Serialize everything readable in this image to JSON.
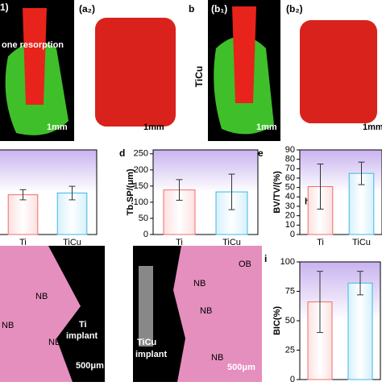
{
  "chart_data": [
    {
      "type": "bar",
      "categories": [
        "Ti",
        "TiCu"
      ],
      "values": [
        0.47,
        0.49
      ],
      "errors": [
        0.06,
        0.08
      ],
      "ylim": [
        0,
        1
      ],
      "colors": [
        "#f26b6b",
        "#3bb8e8"
      ]
    },
    {
      "type": "bar",
      "ylabel": "Tb.SP/(μm)",
      "categories": [
        "Ti",
        "TiCu"
      ],
      "values": [
        138,
        132
      ],
      "errors": [
        32,
        55
      ],
      "ylim": [
        0,
        262
      ],
      "yticks": [
        0,
        50,
        100,
        150,
        200,
        250
      ],
      "colors": [
        "#f26b6b",
        "#3bb8e8"
      ]
    },
    {
      "type": "bar",
      "ylabel": "BV/TV/(%)",
      "annotation": "h",
      "categories": [
        "Ti",
        "TiCu"
      ],
      "values": [
        51,
        65
      ],
      "errors": [
        24,
        12
      ],
      "ylim": [
        0,
        90
      ],
      "yticks": [
        0,
        10,
        20,
        30,
        40,
        50,
        60,
        70,
        80,
        90
      ],
      "colors": [
        "#f26b6b",
        "#3bb8e8"
      ]
    },
    {
      "type": "bar",
      "ylabel": "BIC(%)",
      "categories": [
        "Ti",
        "TiCu"
      ],
      "values": [
        66,
        82
      ],
      "errors": [
        26,
        10
      ],
      "ylim": [
        0,
        100
      ],
      "yticks": [
        0,
        25,
        50,
        75,
        100
      ],
      "colors": [
        "#f26b6b",
        "#3bb8e8"
      ]
    }
  ],
  "panels": {
    "labels": [
      "1)",
      "(a₂)",
      "b",
      "(b₁)",
      "(b₂)",
      "d",
      "e",
      "h",
      "i"
    ],
    "side_label": "TiCu",
    "annotations": [
      "one resorption",
      "1mm",
      "1mm",
      "1mm",
      "1mm",
      "NB",
      "NB",
      "NB",
      "Ti",
      "implant",
      "500μm",
      "OB",
      "NB",
      "NB",
      "NB",
      "TiCu",
      "implant",
      "500μm"
    ]
  }
}
